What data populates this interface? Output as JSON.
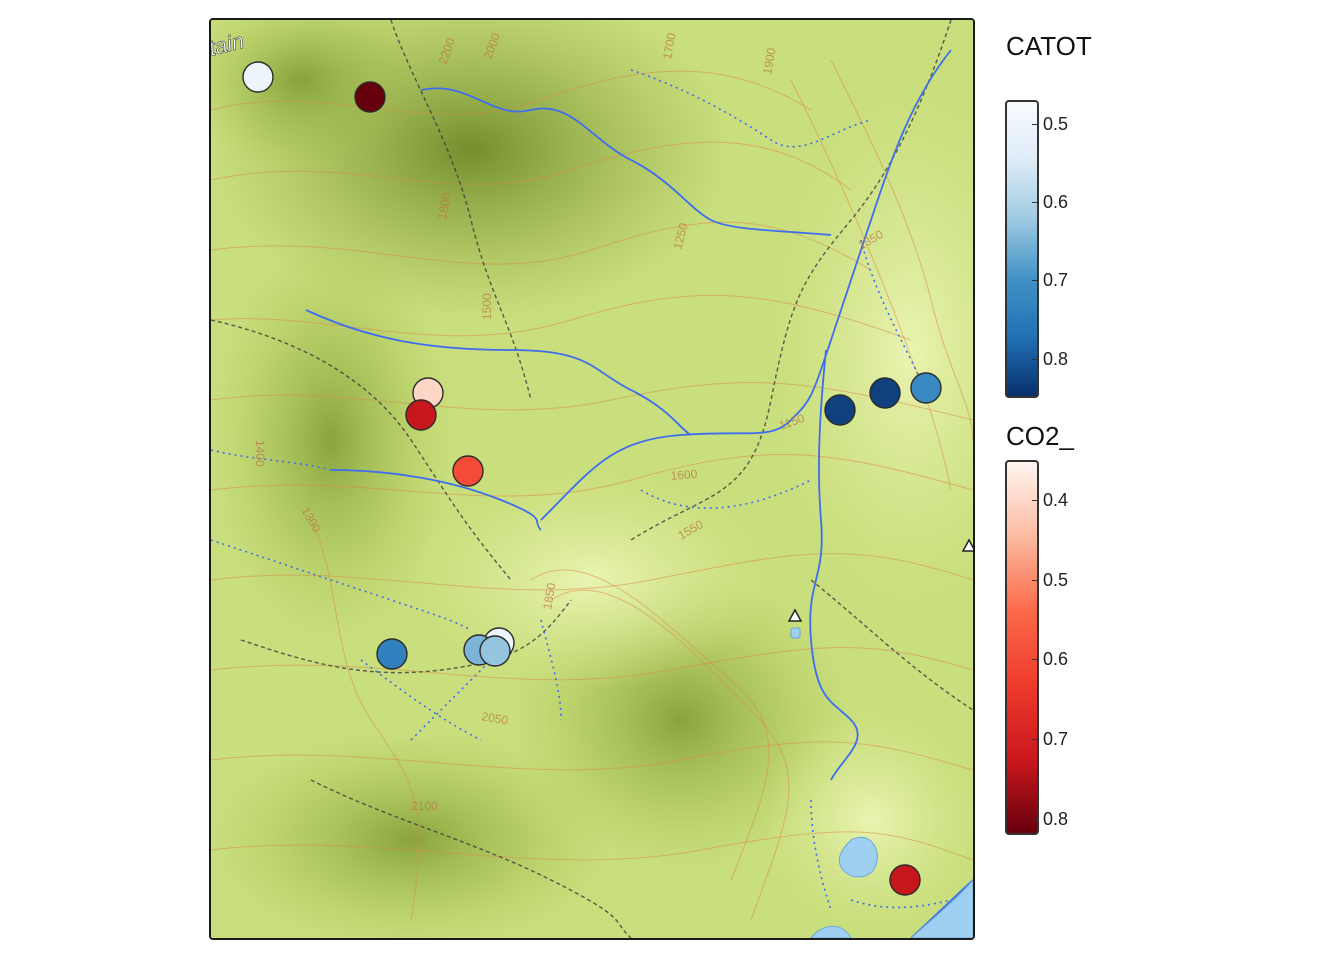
{
  "map": {
    "basemap": "topographic hillshade",
    "corner_label": "tain",
    "contour_labels": [
      "2200",
      "2000",
      "1700",
      "1900",
      "1800",
      "1500",
      "1400",
      "1300",
      "1250",
      "1150",
      "1350",
      "1600",
      "1550",
      "1850",
      "2050",
      "2100"
    ]
  },
  "points": [
    {
      "series": "CATOT",
      "value": 0.5
    },
    {
      "series": "CO2_",
      "value": 0.82
    },
    {
      "series": "CO2_",
      "value": 0.4
    },
    {
      "series": "CO2_",
      "value": 0.73
    },
    {
      "series": "CO2_",
      "value": 0.6
    },
    {
      "series": "CATOT",
      "value": 0.83
    },
    {
      "series": "CATOT",
      "value": 0.83
    },
    {
      "series": "CATOT",
      "value": 0.72
    },
    {
      "series": "CATOT",
      "value": 0.74
    },
    {
      "series": "CATOT",
      "value": 0.5
    },
    {
      "series": "CATOT",
      "value": 0.65
    },
    {
      "series": "CATOT",
      "value": 0.63
    },
    {
      "series": "CO2_",
      "value": 0.73
    }
  ],
  "legend": {
    "catot": {
      "title": "CATOT",
      "range": [
        0.47,
        0.85
      ],
      "ticks": [
        "0.5",
        "0.6",
        "0.7",
        "0.8"
      ],
      "tick_values": [
        0.5,
        0.6,
        0.7,
        0.8
      ],
      "colors": [
        "#f7fbff",
        "#deebf7",
        "#9ecae1",
        "#4292c6",
        "#2171b5",
        "#08306b"
      ]
    },
    "co2": {
      "title": "CO2_",
      "range": [
        0.35,
        0.82
      ],
      "ticks": [
        "0.4",
        "0.5",
        "0.6",
        "0.7",
        "0.8"
      ],
      "tick_values": [
        0.4,
        0.5,
        0.6,
        0.7,
        0.8
      ],
      "colors": [
        "#fff5f0",
        "#fcbba1",
        "#fb6a4a",
        "#ef3b2c",
        "#cb181d",
        "#67000d"
      ]
    }
  }
}
